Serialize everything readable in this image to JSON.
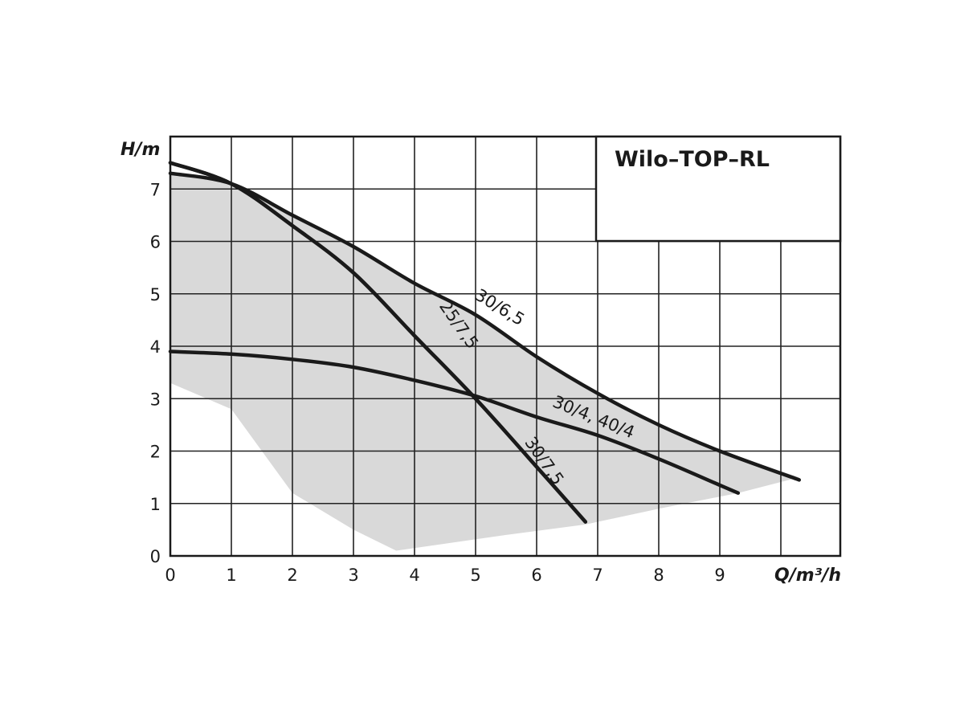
{
  "chart_data": {
    "type": "line",
    "title": "Wilo–TOP–RL",
    "xlabel": "Q/m³/h",
    "ylabel": "H/m",
    "xlim": [
      0,
      11
    ],
    "ylim": [
      0,
      8
    ],
    "x_ticks": [
      "0",
      "1",
      "2",
      "3",
      "4",
      "5",
      "6",
      "7",
      "8",
      "9"
    ],
    "y_ticks": [
      "0",
      "1",
      "2",
      "3",
      "4",
      "5",
      "6",
      "7"
    ],
    "grid": true,
    "legend": "none",
    "colors": {
      "curve": "#1a1a1a",
      "area": "#d9d9d9",
      "grid": "#222222"
    },
    "operating_area": {
      "x": [
        0,
        0,
        1,
        2,
        3,
        4,
        5,
        6,
        7,
        8,
        9,
        10.3,
        9.3,
        8,
        6.8,
        5.5,
        3.7,
        3,
        2,
        1,
        0
      ],
      "y": [
        3.3,
        7.3,
        7.1,
        6.5,
        5.9,
        5.2,
        4.6,
        3.8,
        3.1,
        2.5,
        2.0,
        1.5,
        1.2,
        0.9,
        0.6,
        0.4,
        0.1,
        0.5,
        1.2,
        2.8,
        3.3
      ]
    },
    "series": [
      {
        "name": "30/6,5",
        "x": [
          0,
          1,
          2,
          3,
          4,
          5,
          6,
          7,
          8,
          9,
          10.3
        ],
        "y": [
          7.3,
          7.1,
          6.5,
          5.9,
          5.2,
          4.6,
          3.8,
          3.1,
          2.5,
          2.0,
          1.45
        ]
      },
      {
        "name": "25/7,5",
        "x": [
          0,
          1,
          2,
          3,
          4,
          5,
          6,
          6.8
        ],
        "y": [
          7.5,
          7.1,
          6.3,
          5.4,
          4.2,
          3.0,
          1.7,
          0.65
        ]
      },
      {
        "name": "30/4, 40/4",
        "x": [
          0,
          1,
          2,
          3,
          4,
          5,
          6,
          7,
          8,
          9,
          9.3
        ],
        "y": [
          3.9,
          3.85,
          3.75,
          3.6,
          3.35,
          3.05,
          2.65,
          2.3,
          1.85,
          1.35,
          1.2
        ]
      },
      {
        "name": "30/7,5",
        "x": [
          0,
          1,
          2,
          3,
          4,
          5,
          6,
          6.8
        ],
        "y": [
          7.5,
          7.1,
          6.3,
          5.4,
          4.2,
          3.0,
          1.7,
          0.65
        ]
      }
    ],
    "curve_labels": [
      {
        "text": "30/6,5",
        "x": 5.35,
        "y": 4.65,
        "angle": 31
      },
      {
        "text": "25/7,5",
        "x": 4.65,
        "y": 4.35,
        "angle": 55
      },
      {
        "text": "30/4, 40/4",
        "x": 6.9,
        "y": 2.55,
        "angle": 22
      },
      {
        "text": "30/7,5",
        "x": 6.05,
        "y": 1.75,
        "angle": 55
      }
    ]
  }
}
